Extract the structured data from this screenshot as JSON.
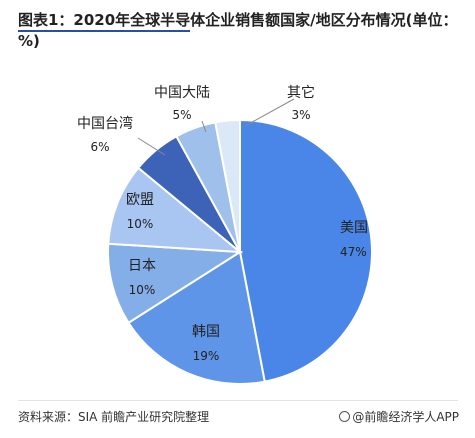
{
  "footer": {
    "source": "资料来源：SIA 前瞻产业研究院整理",
    "brand": "@前瞻经济学人APP"
  },
  "chart_data": {
    "type": "pie",
    "title": "图表1：2020年全球半导体企业销售额国家/地区分布情况(单位：%)",
    "slices": [
      {
        "label": "美国",
        "value": 47,
        "pct_text": "47%",
        "color": "#4a86e8"
      },
      {
        "label": "韩国",
        "value": 19,
        "pct_text": "19%",
        "color": "#5e95e8"
      },
      {
        "label": "日本",
        "value": 10,
        "pct_text": "10%",
        "color": "#84aee8"
      },
      {
        "label": "欧盟",
        "value": 10,
        "pct_text": "10%",
        "color": "#a9c6f2"
      },
      {
        "label": "中国台湾",
        "value": 6,
        "pct_text": "6%",
        "color": "#3d63b8"
      },
      {
        "label": "中国大陆",
        "value": 5,
        "pct_text": "5%",
        "color": "#9ec0ea"
      },
      {
        "label": "其它",
        "value": 3,
        "pct_text": "3%",
        "color": "#dbe8f8"
      }
    ]
  }
}
